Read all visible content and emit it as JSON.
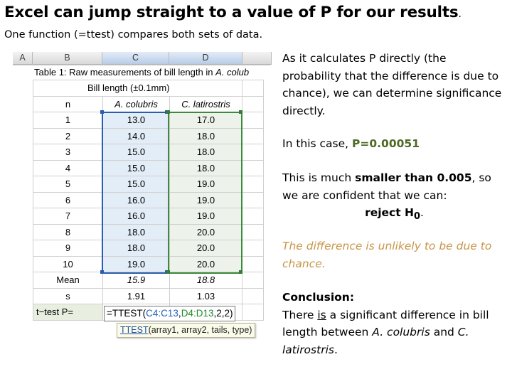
{
  "slide": {
    "title": "Excel can jump straight to a value of P for our results",
    "title_period": ".",
    "subtitle": "One function (=ttest) compares both sets of data."
  },
  "sheet": {
    "col_headers": [
      "A",
      "B",
      "C",
      "D"
    ],
    "caption_prefix": "Table 1: Raw measurements of bill length in ",
    "caption_species": "A. colub",
    "bill_length_header": "Bill length (±0.1mm)",
    "header_row": [
      "n",
      "A. colubris",
      "C. latirostris"
    ],
    "rows": [
      [
        "1",
        "13.0",
        "17.0"
      ],
      [
        "2",
        "14.0",
        "18.0"
      ],
      [
        "3",
        "15.0",
        "18.0"
      ],
      [
        "4",
        "15.0",
        "18.0"
      ],
      [
        "5",
        "15.0",
        "19.0"
      ],
      [
        "6",
        "16.0",
        "19.0"
      ],
      [
        "7",
        "16.0",
        "19.0"
      ],
      [
        "8",
        "18.0",
        "20.0"
      ],
      [
        "9",
        "18.0",
        "20.0"
      ],
      [
        "10",
        "19.0",
        "20.0"
      ]
    ],
    "mean_row": [
      "Mean",
      "15.9",
      "18.8"
    ],
    "s_row": [
      "s",
      "1.91",
      "1.03"
    ],
    "ttest_label": "t−test P=",
    "formula": {
      "prefix": "=TTEST(",
      "range1": "C4:C13",
      "comma": ",",
      "range2": "D4:D13",
      "suffix": ",2,2)"
    },
    "tooltip": {
      "fn": "TTEST",
      "args": "(array1, array2, tails, type)"
    }
  },
  "text": {
    "p1": "As it calculates P directly (the probability that the difference is due to chance), we can determine significance directly.",
    "p2_prefix": "In this case, ",
    "p2_value": "P=0.00051",
    "p3_prefix": "This is much ",
    "p3_bold": "smaller than 0.005",
    "p3_suffix": ", so we are confident that we can:",
    "p3_reject": "reject H",
    "p3_sub": "0",
    "p3_end": ".",
    "p4": "The difference is unlikely to be due to chance.",
    "p5_title": "Conclusion:",
    "p5_a": "There ",
    "p5_is": "is",
    "p5_b": " a significant difference in bill length between ",
    "p5_sp1": "A. colubris",
    "p5_c": " and ",
    "p5_sp2": "C. latirostris",
    "p5_d": "."
  },
  "colors": {
    "p_value": "#4e6a23",
    "implication": "#c89548",
    "range1": "#1f5fb8",
    "range2": "#1e8a2a"
  }
}
